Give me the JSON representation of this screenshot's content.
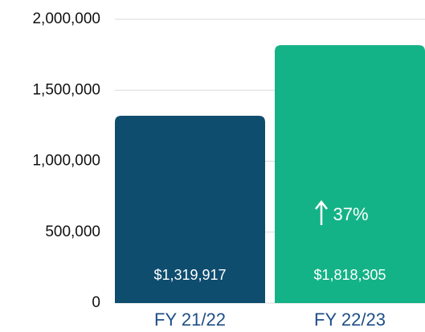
{
  "chart_data": {
    "type": "bar",
    "categories": [
      "FY 21/22",
      "FY 22/23"
    ],
    "values": [
      1319917,
      1818305
    ],
    "value_labels": [
      "$1,319,917",
      "$1,818,305"
    ],
    "colors": [
      "#0f4d6f",
      "#14b387"
    ],
    "annotation": "37%",
    "ylim": [
      0,
      2000000
    ],
    "yticks": [
      0,
      {
        "value": 500000,
        "label": "500,000"
      },
      {
        "value": 1000000,
        "label": "1,000,000"
      },
      {
        "value": 1500000,
        "label": "1,500,000"
      },
      {
        "value": 2000000,
        "label": "2,000,000"
      }
    ],
    "grid": true
  }
}
